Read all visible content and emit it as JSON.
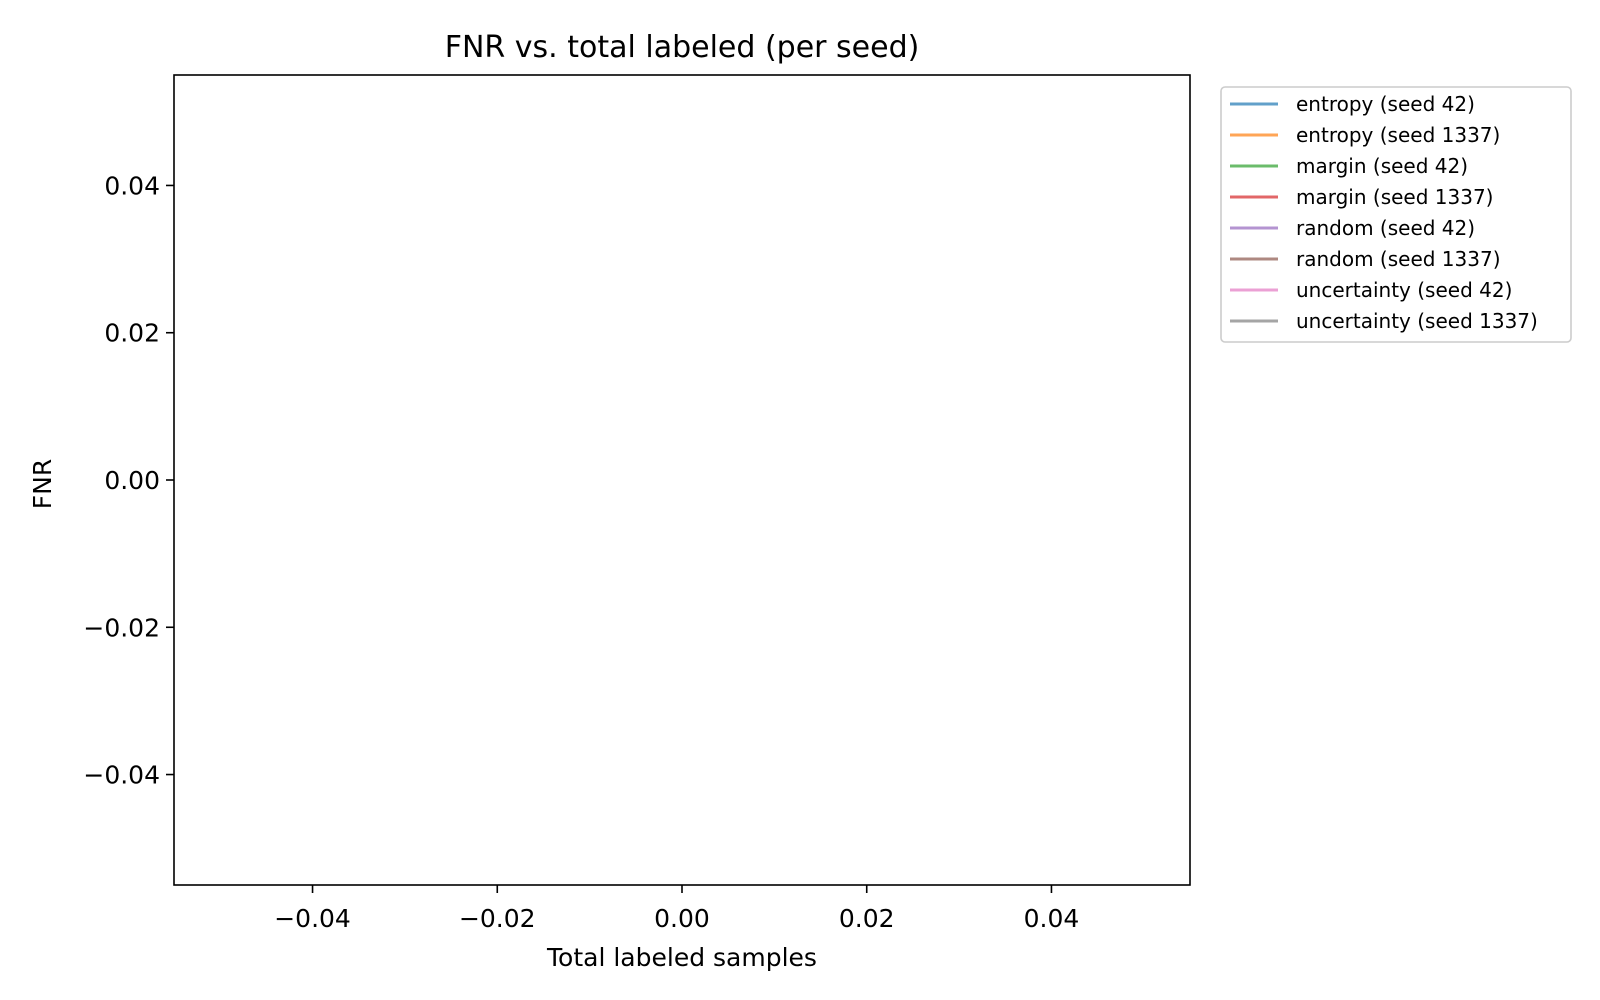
{
  "chart_data": {
    "type": "line",
    "title": "FNR vs. total labeled (per seed)",
    "xlabel": "Total labeled samples",
    "ylabel": "FNR",
    "xlim": [
      -0.055,
      0.055
    ],
    "ylim": [
      -0.055,
      0.055
    ],
    "xticks": [
      -0.04,
      -0.02,
      0.0,
      0.02,
      0.04
    ],
    "yticks": [
      -0.04,
      -0.02,
      0.0,
      0.02,
      0.04
    ],
    "xtick_labels": [
      "−0.04",
      "−0.02",
      "0.00",
      "0.02",
      "0.04"
    ],
    "ytick_labels": [
      "−0.04",
      "−0.02",
      "0.00",
      "0.02",
      "0.04"
    ],
    "grid": false,
    "legend_placement": "outside-top-right",
    "series": [
      {
        "name": "entropy (seed 42)",
        "color": "#1f77b4",
        "x": [],
        "y": []
      },
      {
        "name": "entropy (seed 1337)",
        "color": "#ff7f0e",
        "x": [],
        "y": []
      },
      {
        "name": "margin (seed 42)",
        "color": "#2ca02c",
        "x": [],
        "y": []
      },
      {
        "name": "margin (seed 1337)",
        "color": "#d62728",
        "x": [],
        "y": []
      },
      {
        "name": "random (seed 42)",
        "color": "#9467bd",
        "x": [],
        "y": []
      },
      {
        "name": "random (seed 1337)",
        "color": "#8c564b",
        "x": [],
        "y": []
      },
      {
        "name": "uncertainty (seed 42)",
        "color": "#e377c2",
        "x": [],
        "y": []
      },
      {
        "name": "uncertainty (seed 1337)",
        "color": "#7f7f7f",
        "x": [],
        "y": []
      }
    ]
  }
}
